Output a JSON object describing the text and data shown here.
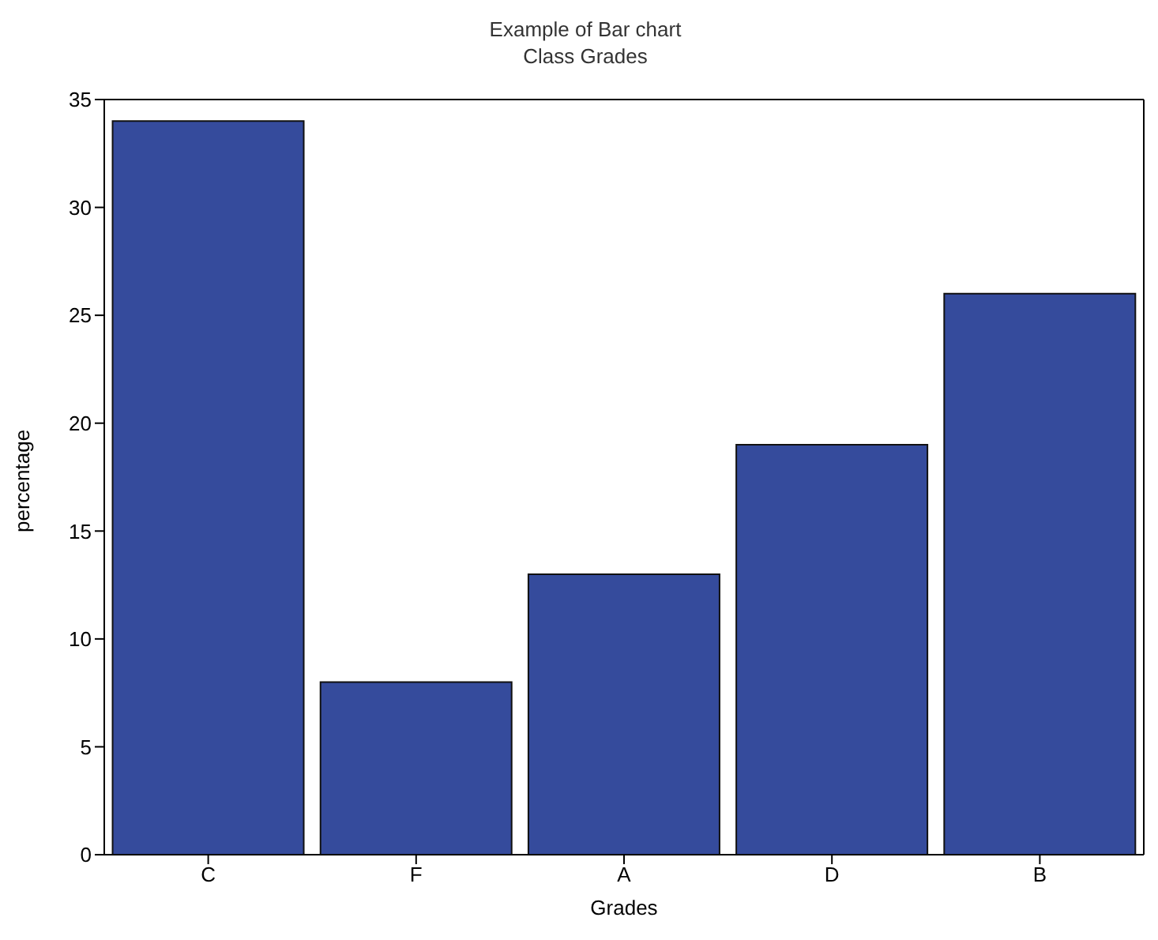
{
  "chart_data": {
    "type": "bar",
    "title": "Example of Bar chart",
    "subtitle": "Class Grades",
    "xlabel": "Grades",
    "ylabel": "percentage",
    "categories": [
      "C",
      "F",
      "A",
      "D",
      "B"
    ],
    "values": [
      34,
      8,
      13,
      19,
      26
    ],
    "color": "#354b9c",
    "ylim": [
      0,
      35
    ],
    "yticks": [
      0,
      5,
      10,
      15,
      20,
      25,
      30,
      35
    ],
    "grid": false
  }
}
